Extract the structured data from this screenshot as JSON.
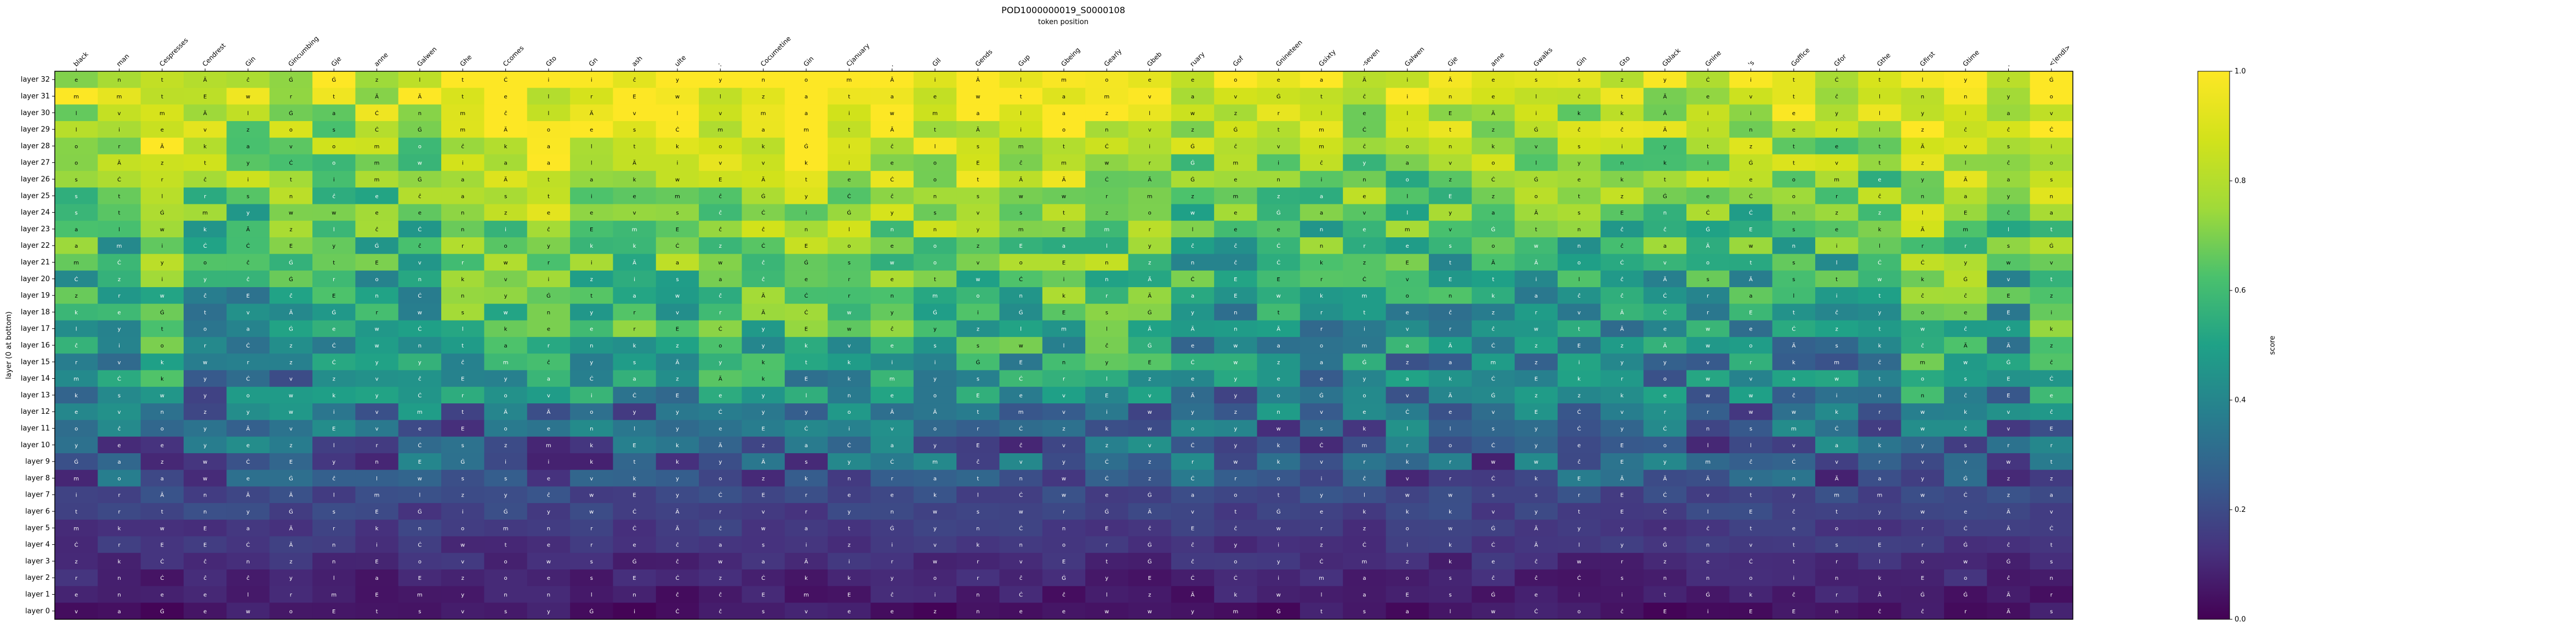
{
  "chart_data": {
    "type": "heatmap",
    "title": "POD1000000019_S0000108",
    "subtitle": "token position",
    "ylabel": "layer (0 at bottom)",
    "colorbar_label": "score",
    "colormap": "viridis",
    "clim": [
      0.0,
      1.0
    ],
    "colorbar_ticks": [
      "0.0",
      "0.2",
      "0.4",
      "0.6",
      "0.8",
      "1.0"
    ],
    "x_tokens": [
      "black",
      "man",
      "Cespresses",
      "Cendrest",
      "Gin",
      "Gincumbing",
      "Gje",
      "anne",
      "Galwen",
      "Ghe",
      "Ccomes",
      "Gto",
      "Gn",
      "ash",
      "ulte",
      ":",
      "Cocumetine",
      "Gin",
      "Cjanuary",
      ".",
      "Gll",
      "Gends",
      "Gup",
      "Gbeing",
      "Gearly",
      "Gbeb",
      "ruary",
      "Gof",
      "Gnineteen",
      "Gsixty",
      "-seven",
      "Galwen",
      "Gje",
      "anne",
      "Gwalks",
      "Gin",
      "Gto",
      "Gblack",
      "Gnine",
      "'s",
      "Goffice",
      "Gfor",
      "Gthe",
      "Gfirst",
      "Gtime",
      ".",
      "<|endl>"
    ],
    "y_layers": [
      "layer 32",
      "layer 31",
      "layer 30",
      "layer 29",
      "layer 28",
      "layer 27",
      "layer 26",
      "layer 25",
      "layer 24",
      "layer 23",
      "layer 22",
      "layer 21",
      "layer 20",
      "layer 19",
      "layer 18",
      "layer 17",
      "layer 16",
      "layer 15",
      "layer 14",
      "layer 13",
      "layer 12",
      "layer 11",
      "layer 10",
      "layer 9",
      "layer 8",
      "layer 7",
      "layer 6",
      "layer 5",
      "layer 4",
      "layer 3",
      "layer 2",
      "layer 1",
      "layer 0"
    ],
    "cell_glyphs": [
      "e",
      "m",
      "i",
      "t",
      "l",
      "a",
      "o",
      "s",
      "n",
      "r",
      "k",
      "w",
      "v",
      "y",
      "z",
      "E",
      "Ä",
      "Ġ",
      "ĉ",
      "Ċ"
    ],
    "grid": false
  }
}
